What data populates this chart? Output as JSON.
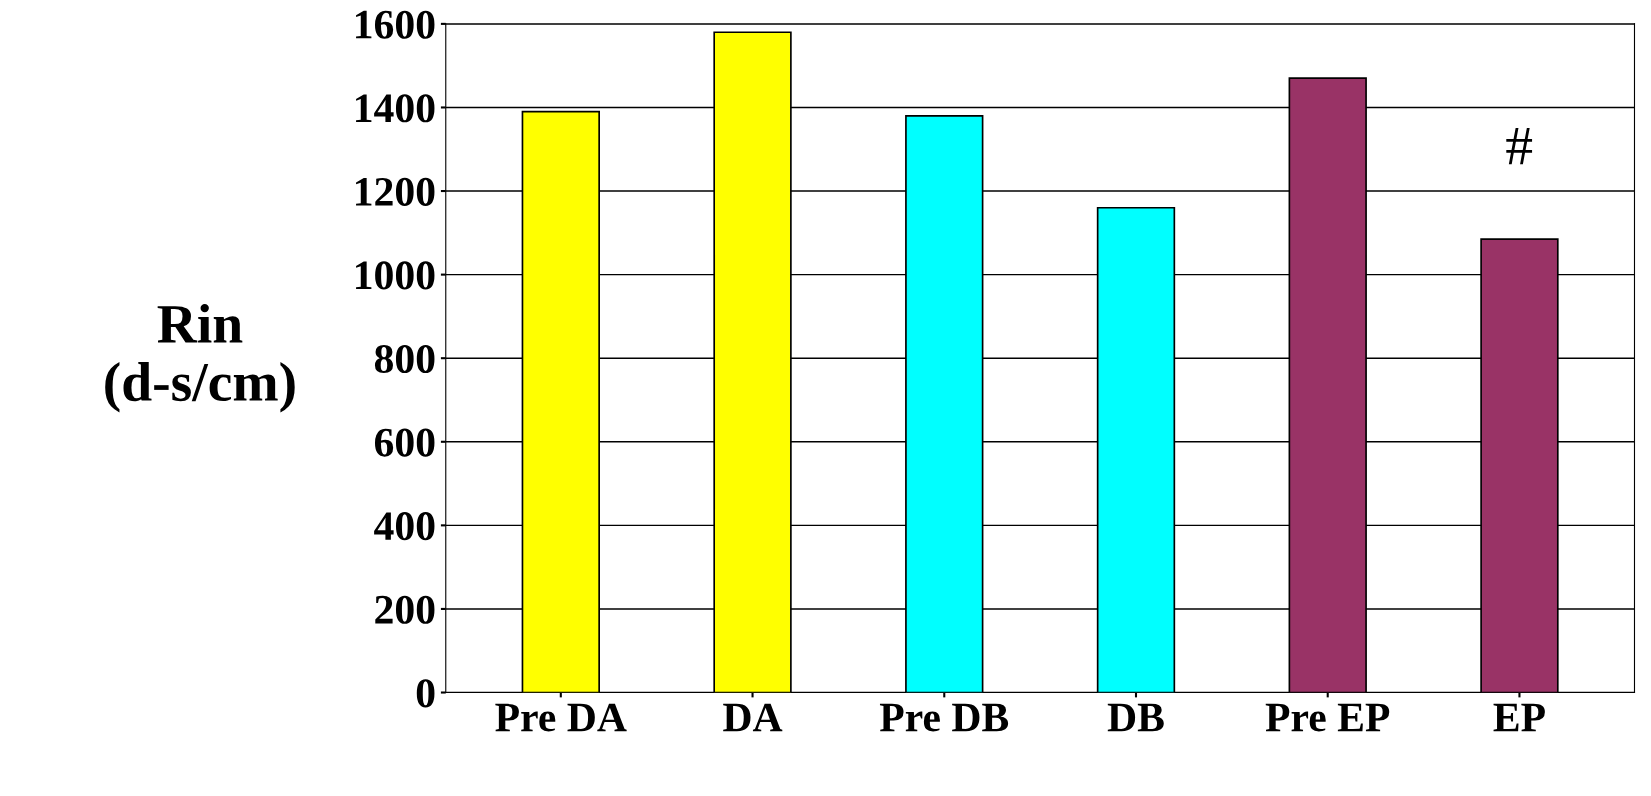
{
  "chart_data": {
    "type": "bar",
    "ylabel": "Rin\n(d-s/cm)",
    "categories": [
      "Pre DA",
      "DA",
      "Pre DB",
      "DB",
      "Pre EP",
      "EP"
    ],
    "values": [
      1390,
      1580,
      1380,
      1160,
      1470,
      1085
    ],
    "colors": [
      "#ffff00",
      "#ffff00",
      "#00ffff",
      "#00ffff",
      "#993366",
      "#993366"
    ],
    "ylim": [
      0,
      1600
    ],
    "yticks": [
      0,
      200,
      400,
      600,
      800,
      1000,
      1200,
      1400,
      1600
    ],
    "grid": "y",
    "annotations": [
      "#"
    ]
  }
}
